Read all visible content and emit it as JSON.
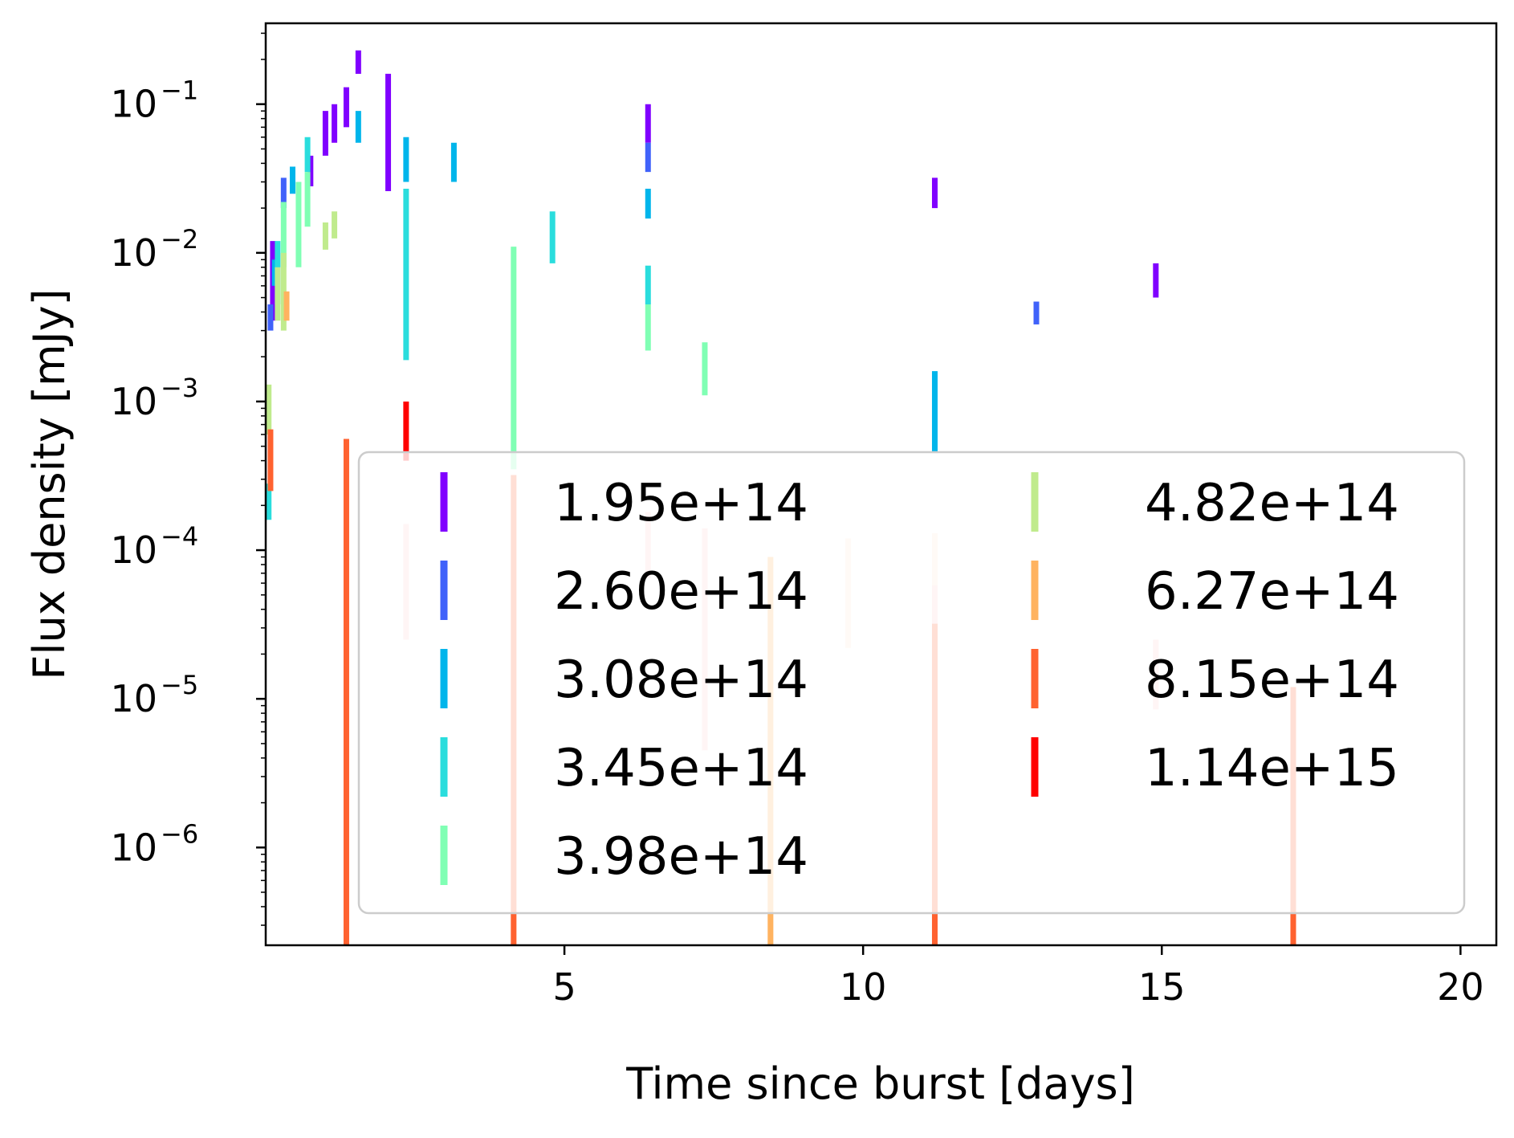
{
  "chart_data": {
    "type": "scatter",
    "title": "",
    "xlabel": "Time since burst [days]",
    "ylabel": "Flux density [mJy]",
    "xscale": "linear",
    "yscale": "log",
    "xlim": [
      0,
      20.6
    ],
    "ylim": [
      2.2e-07,
      0.35
    ],
    "xticks": [
      5,
      10,
      15,
      20
    ],
    "xtick_labels": [
      "5",
      "10",
      "15",
      "20"
    ],
    "yticks": [
      -6,
      -5,
      -4,
      -3,
      -2,
      -1
    ],
    "ytick_labels": [
      "10",
      "10",
      "10",
      "10",
      "10",
      "10"
    ],
    "ytick_exponents": [
      "−6",
      "−5",
      "−4",
      "−3",
      "−2",
      "−1"
    ],
    "grid": false,
    "legend_position": "lower-right",
    "legend_columns": 2,
    "series": [
      {
        "name": "1.95e+14",
        "color": "#8000ff",
        "points": [
          {
            "x": 0.12,
            "lo": 0.0035,
            "hi": 0.012
          },
          {
            "x": 0.75,
            "lo": 0.028,
            "hi": 0.045
          },
          {
            "x": 1.0,
            "lo": 0.045,
            "hi": 0.09
          },
          {
            "x": 1.15,
            "lo": 0.055,
            "hi": 0.1
          },
          {
            "x": 1.35,
            "lo": 0.07,
            "hi": 0.13
          },
          {
            "x": 1.55,
            "lo": 0.16,
            "hi": 0.23
          },
          {
            "x": 2.05,
            "lo": 0.026,
            "hi": 0.16
          },
          {
            "x": 6.4,
            "lo": 0.055,
            "hi": 0.1
          },
          {
            "x": 11.2,
            "lo": 0.02,
            "hi": 0.032
          },
          {
            "x": 14.9,
            "lo": 0.005,
            "hi": 0.0085
          }
        ]
      },
      {
        "name": "2.60e+14",
        "color": "#4062fa",
        "points": [
          {
            "x": 0.08,
            "lo": 0.003,
            "hi": 0.0045
          },
          {
            "x": 0.3,
            "lo": 0.02,
            "hi": 0.032
          },
          {
            "x": 0.45,
            "lo": 0.025,
            "hi": 0.036
          },
          {
            "x": 6.4,
            "lo": 0.035,
            "hi": 0.055
          },
          {
            "x": 12.9,
            "lo": 0.0033,
            "hi": 0.0047
          }
        ]
      },
      {
        "name": "3.08e+14",
        "color": "#00b5eb",
        "points": [
          {
            "x": 0.15,
            "lo": 0.006,
            "hi": 0.009
          },
          {
            "x": 0.45,
            "lo": 0.025,
            "hi": 0.038
          },
          {
            "x": 1.55,
            "lo": 0.055,
            "hi": 0.09
          },
          {
            "x": 2.35,
            "lo": 0.03,
            "hi": 0.06
          },
          {
            "x": 3.15,
            "lo": 0.03,
            "hi": 0.055
          },
          {
            "x": 6.4,
            "lo": 0.017,
            "hi": 0.027
          },
          {
            "x": 11.2,
            "lo": 0.00045,
            "hi": 0.0016
          }
        ]
      },
      {
        "name": "3.45e+14",
        "color": "#2adddd",
        "points": [
          {
            "x": 0.05,
            "lo": 0.00016,
            "hi": 0.00028
          },
          {
            "x": 0.2,
            "lo": 0.0045,
            "hi": 0.012
          },
          {
            "x": 0.7,
            "lo": 0.035,
            "hi": 0.06
          },
          {
            "x": 2.35,
            "lo": 0.0019,
            "hi": 0.027
          },
          {
            "x": 4.8,
            "lo": 0.0085,
            "hi": 0.019
          },
          {
            "x": 6.4,
            "lo": 0.0045,
            "hi": 0.0082
          }
        ]
      },
      {
        "name": "3.98e+14",
        "color": "#80ffb4",
        "points": [
          {
            "x": 0.3,
            "lo": 0.008,
            "hi": 0.022
          },
          {
            "x": 0.55,
            "lo": 0.008,
            "hi": 0.03
          },
          {
            "x": 0.7,
            "lo": 0.015,
            "hi": 0.035
          },
          {
            "x": 4.15,
            "lo": 0.00035,
            "hi": 0.011
          },
          {
            "x": 6.4,
            "lo": 0.0022,
            "hi": 0.0045
          },
          {
            "x": 7.35,
            "lo": 0.0011,
            "hi": 0.0025
          }
        ]
      },
      {
        "name": "4.82e+14",
        "color": "#c0eb8d",
        "points": [
          {
            "x": 0.05,
            "lo": 0.0006,
            "hi": 0.0013
          },
          {
            "x": 0.2,
            "lo": 0.0035,
            "hi": 0.008
          },
          {
            "x": 0.3,
            "lo": 0.003,
            "hi": 0.01
          },
          {
            "x": 1.0,
            "lo": 0.0105,
            "hi": 0.016
          },
          {
            "x": 1.15,
            "lo": 0.0125,
            "hi": 0.019
          }
        ]
      },
      {
        "name": "6.27e+14",
        "color": "#ffb360",
        "points": [
          {
            "x": 0.35,
            "lo": 0.0035,
            "hi": 0.0055
          },
          {
            "x": 8.45,
            "lo": 2.2e-07,
            "hi": 9e-05
          }
        ]
      },
      {
        "name": "8.15e+14",
        "color": "#ff6230",
        "points": [
          {
            "x": 0.08,
            "lo": 0.00025,
            "hi": 0.00065
          },
          {
            "x": 1.35,
            "lo": 2.2e-07,
            "hi": 0.00056
          },
          {
            "x": 4.15,
            "lo": 2.2e-07,
            "hi": 0.00032
          },
          {
            "x": 11.2,
            "lo": 2.2e-07,
            "hi": 3.2e-05
          },
          {
            "x": 17.2,
            "lo": 2.2e-07,
            "hi": 1.2e-05
          }
        ]
      },
      {
        "name": "1.14e+15",
        "color": "#ff0000",
        "points": [
          {
            "x": 2.35,
            "lo": 0.0004,
            "hi": 0.001
          }
        ]
      }
    ],
    "faint_bars": [
      {
        "x": 2.35,
        "lo": 2.5e-05,
        "hi": 0.00015,
        "color": "#ffcccc"
      },
      {
        "x": 4.15,
        "lo": 2.2e-07,
        "hi": 0.00032,
        "color": "#ffddcc"
      },
      {
        "x": 6.4,
        "lo": 6.5e-05,
        "hi": 0.00018,
        "color": "#ffcccc"
      },
      {
        "x": 7.35,
        "lo": 4.5e-06,
        "hi": 0.00014,
        "color": "#ffcccc"
      },
      {
        "x": 8.45,
        "lo": 2.2e-07,
        "hi": 9e-05,
        "color": "#ffe5d0"
      },
      {
        "x": 9.75,
        "lo": 2.2e-05,
        "hi": 0.00012,
        "color": "#ffe5d0"
      },
      {
        "x": 11.2,
        "lo": 2.8e-05,
        "hi": 0.00013,
        "color": "#ffe5d0"
      },
      {
        "x": 11.2,
        "lo": 2.2e-07,
        "hi": 5.8e-05,
        "color": "#ffcccc"
      },
      {
        "x": 14.9,
        "lo": 8.5e-06,
        "hi": 2.5e-05,
        "color": "#ffcccc"
      },
      {
        "x": 17.2,
        "lo": 2.2e-07,
        "hi": 1.2e-05,
        "color": "#ffcccc"
      }
    ]
  }
}
